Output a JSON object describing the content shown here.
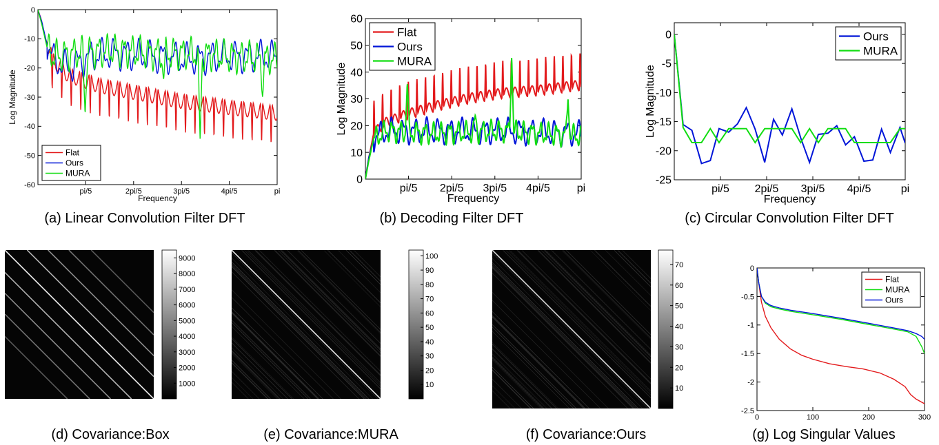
{
  "captions": [
    "(a) Linear Convolution Filter DFT",
    "(b) Decoding Filter DFT",
    "(c) Circular Convolution Filter DFT",
    "(d) Covariance:Box",
    "(e) Covariance:MURA",
    "(f) Covariance:Ours",
    "(g) Log Singular Values"
  ],
  "colors": {
    "Flat": "#e31a1c",
    "Ours": "#0015d8",
    "MURA": "#11dd11"
  },
  "chart_data": [
    {
      "id": "a",
      "type": "line",
      "xlabel": "Frequency",
      "ylabel": "Log Magnitude",
      "xlim": [
        0,
        3.1416
      ],
      "ylim": [
        -60,
        0
      ],
      "xticks": [
        0.6283,
        1.2566,
        1.885,
        2.5133,
        3.1416
      ],
      "xticklabels": [
        "pi/5",
        "2pi/5",
        "3pi/5",
        "4pi/5",
        "pi"
      ],
      "yticks": [
        0,
        -10,
        -20,
        -30,
        -40,
        -50,
        -60
      ],
      "yticklabels": [
        "0",
        "-10",
        "-20",
        "-30",
        "-40",
        "-50",
        "-60"
      ],
      "legend": {
        "position": "bottom-left",
        "entries": [
          "Flat",
          "Ours",
          "MURA"
        ]
      },
      "series": [
        {
          "name": "Flat",
          "base": [
            [
              0,
              0
            ],
            [
              0.04,
              -3
            ],
            [
              0.1,
              -10
            ],
            [
              0.2,
              -17
            ],
            [
              0.4,
              -22
            ],
            [
              0.8,
              -25.5
            ],
            [
              1.3,
              -28
            ],
            [
              1.9,
              -31
            ],
            [
              2.5,
              -33
            ],
            [
              3.1416,
              -35
            ]
          ],
          "period": 0.125,
          "dip": 14,
          "dip_x": [
            0.148,
            0.273,
            0.398,
            0.523,
            0.648,
            0.773,
            0.898,
            1.023,
            1.148,
            1.273,
            1.398,
            1.523,
            1.648,
            1.773,
            1.898,
            2.023,
            2.148,
            2.273,
            2.398,
            2.523,
            2.648,
            2.773,
            2.898,
            3.023
          ]
        },
        {
          "name": "Ours",
          "base": [
            [
              0,
              0
            ],
            [
              0.05,
              -4
            ],
            [
              0.12,
              -12
            ],
            [
              0.2,
              -17
            ],
            [
              0.4,
              -20
            ],
            [
              0.7,
              -16
            ],
            [
              1.0,
              -15
            ],
            [
              1.5,
              -16
            ],
            [
              2.0,
              -17
            ],
            [
              2.5,
              -16
            ],
            [
              3.1416,
              -16
            ]
          ],
          "period": 0.16,
          "amp": 4
        },
        {
          "name": "MURA",
          "base": [
            [
              0,
              0
            ],
            [
              0.05,
              -5
            ],
            [
              0.12,
              -13
            ],
            [
              0.2,
              -16
            ],
            [
              0.5,
              -15
            ],
            [
              1.0,
              -14
            ],
            [
              1.5,
              -15
            ],
            [
              2.0,
              -15
            ],
            [
              2.5,
              -16
            ],
            [
              3.1416,
              -17
            ]
          ],
          "period": 0.11,
          "amp": 4,
          "spikes": [
            [
              0.62,
              -36
            ],
            [
              1.65,
              -24
            ],
            [
              2.13,
              -45
            ],
            [
              2.95,
              -30
            ]
          ]
        }
      ]
    },
    {
      "id": "b",
      "type": "line",
      "xlabel": "Frequency",
      "ylabel": "Log Magnitude",
      "xlim": [
        0,
        3.1416
      ],
      "ylim": [
        0,
        60
      ],
      "xticks": [
        0.6283,
        1.2566,
        1.885,
        2.5133,
        3.1416
      ],
      "xticklabels": [
        "pi/5",
        "2pi/5",
        "3pi/5",
        "4pi/5",
        "pi"
      ],
      "yticks": [
        0,
        10,
        20,
        30,
        40,
        50,
        60
      ],
      "yticklabels": [
        "0",
        "10",
        "20",
        "30",
        "40",
        "50",
        "60"
      ],
      "legend": {
        "position": "top-left",
        "entries": [
          "Flat",
          "Ours",
          "MURA"
        ]
      },
      "series": [
        {
          "name": "Flat",
          "base": [
            [
              0,
              0
            ],
            [
              0.05,
              8
            ],
            [
              0.12,
              17
            ],
            [
              0.3,
              21
            ],
            [
              0.6,
              24
            ],
            [
              1.0,
              27
            ],
            [
              1.5,
              30
            ],
            [
              2.0,
              32
            ],
            [
              2.5,
              33
            ],
            [
              3.1416,
              35
            ]
          ],
          "period": 0.125,
          "peak": 14
        },
        {
          "name": "Ours",
          "base": [
            [
              0,
              0
            ],
            [
              0.05,
              8
            ],
            [
              0.12,
              15
            ],
            [
              0.3,
              18
            ],
            [
              1.0,
              18
            ],
            [
              2.0,
              18
            ],
            [
              3.1416,
              17
            ]
          ],
          "period": 0.17,
          "amp": 3.5
        },
        {
          "name": "MURA",
          "base": [
            [
              0,
              0
            ],
            [
              0.05,
              7
            ],
            [
              0.12,
              15
            ],
            [
              0.3,
              18
            ],
            [
              1.0,
              17
            ],
            [
              2.0,
              18
            ],
            [
              3.1416,
              16
            ]
          ],
          "period": 0.12,
          "amp": 3,
          "spikes": [
            [
              0.61,
              36
            ],
            [
              1.6,
              24
            ],
            [
              2.13,
              46
            ],
            [
              2.95,
              30
            ]
          ]
        }
      ]
    },
    {
      "id": "c",
      "type": "line",
      "xlabel": "Frequency",
      "ylabel": "Log Magnitude",
      "xlim": [
        0,
        3.1416
      ],
      "ylim": [
        -25,
        2
      ],
      "xticks": [
        0.6283,
        1.2566,
        1.885,
        2.5133,
        3.1416
      ],
      "xticklabels": [
        "pi/5",
        "2pi/5",
        "3pi/5",
        "4pi/5",
        "pi"
      ],
      "yticks": [
        0,
        -5,
        -10,
        -15,
        -20,
        -25
      ],
      "yticklabels": [
        "0",
        "-5",
        "-10",
        "-15",
        "-20",
        "-25"
      ],
      "legend": {
        "position": "top-right",
        "entries": [
          "Ours",
          "MURA"
        ]
      },
      "series": [
        {
          "name": "Ours",
          "x": [
            0,
            0.12,
            0.24,
            0.37,
            0.49,
            0.61,
            0.74,
            0.86,
            0.98,
            1.1,
            1.23,
            1.35,
            1.47,
            1.6,
            1.72,
            1.84,
            1.96,
            2.09,
            2.21,
            2.33,
            2.45,
            2.58,
            2.7,
            2.82,
            2.94,
            3.07,
            3.1416
          ],
          "y": [
            0,
            -15.5,
            -16.5,
            -22.2,
            -21.7,
            -16.2,
            -16.8,
            -15.4,
            -12.6,
            -16.3,
            -22,
            -14.6,
            -17.3,
            -12.8,
            -17.8,
            -22,
            -17.2,
            -17,
            -15.7,
            -19,
            -17.6,
            -21.8,
            -21.6,
            -16.3,
            -20.3,
            -16,
            -18.7
          ]
        },
        {
          "name": "MURA",
          "x": [
            0,
            0.12,
            0.24,
            0.37,
            0.49,
            0.61,
            0.74,
            0.86,
            0.98,
            1.1,
            1.23,
            1.35,
            1.47,
            1.6,
            1.72,
            1.84,
            1.96,
            2.09,
            2.21,
            2.33,
            2.45,
            2.58,
            2.7,
            2.82,
            2.94,
            3.07,
            3.1416
          ],
          "y": [
            0,
            -16,
            -18.6,
            -18.6,
            -16.2,
            -18.6,
            -16.2,
            -16.2,
            -16.2,
            -18.6,
            -16.2,
            -16.2,
            -16.2,
            -16.2,
            -18.6,
            -16.2,
            -18.6,
            -16.2,
            -16.2,
            -16.2,
            -18.6,
            -18.6,
            -18.6,
            -18.6,
            -18.6,
            -16.2,
            -16.2
          ]
        }
      ]
    },
    {
      "id": "d",
      "type": "heatmap",
      "colorbar_ticks": [
        1000,
        2000,
        3000,
        4000,
        5000,
        6000,
        7000,
        8000,
        9000
      ],
      "colorbar_ticklabels": [
        "1000",
        "2000",
        "3000",
        "4000",
        "5000",
        "6000",
        "7000",
        "8000",
        "9000"
      ],
      "clim": [
        0,
        9500
      ],
      "diagonal_offsets": [
        -0.58,
        -0.43,
        -0.29,
        -0.15,
        0,
        0.15,
        0.29,
        0.43,
        0.58
      ],
      "diagonal_intensity": [
        0.35,
        0.45,
        0.55,
        0.7,
        0.95,
        0.7,
        0.55,
        0.45,
        0.35
      ]
    },
    {
      "id": "e",
      "type": "heatmap",
      "colorbar_ticks": [
        10,
        20,
        30,
        40,
        50,
        60,
        70,
        80,
        90,
        100
      ],
      "colorbar_ticklabels": [
        "10",
        "20",
        "30",
        "40",
        "50",
        "60",
        "70",
        "80",
        "90",
        "100"
      ],
      "clim": [
        0,
        104
      ],
      "diagonal_offsets": [
        0
      ],
      "diagonal_intensity": [
        0.9
      ]
    },
    {
      "id": "f",
      "type": "heatmap",
      "colorbar_ticks": [
        10,
        20,
        30,
        40,
        50,
        60,
        70
      ],
      "colorbar_ticklabels": [
        "10",
        "20",
        "30",
        "40",
        "50",
        "60",
        "70"
      ],
      "clim": [
        0,
        77
      ],
      "diagonal_offsets": [
        0
      ],
      "diagonal_intensity": [
        0.85
      ]
    },
    {
      "id": "g",
      "type": "line",
      "xlim": [
        0,
        300
      ],
      "ylim": [
        -2.5,
        0
      ],
      "xticks": [
        0,
        100,
        200,
        300
      ],
      "xticklabels": [
        "0",
        "100",
        "200",
        "300"
      ],
      "yticks": [
        0,
        -0.5,
        -1,
        -1.5,
        -2,
        -2.5
      ],
      "yticklabels": [
        "0",
        "-0.5",
        "-1",
        "-1.5",
        "-2",
        "-2.5"
      ],
      "legend": {
        "position": "top-right",
        "entries": [
          "Flat",
          "MURA",
          "Ours"
        ]
      },
      "series": [
        {
          "name": "Flat",
          "x": [
            0,
            3,
            8,
            15,
            25,
            40,
            60,
            80,
            100,
            130,
            160,
            190,
            220,
            245,
            265,
            275,
            285,
            300
          ],
          "y": [
            0,
            -0.25,
            -0.6,
            -0.85,
            -1.05,
            -1.25,
            -1.42,
            -1.53,
            -1.6,
            -1.68,
            -1.73,
            -1.77,
            -1.84,
            -1.95,
            -2.08,
            -2.22,
            -2.3,
            -2.38
          ]
        },
        {
          "name": "MURA",
          "x": [
            0,
            3,
            8,
            15,
            25,
            40,
            60,
            100,
            150,
            200,
            250,
            270,
            285,
            295,
            300
          ],
          "y": [
            0,
            -0.25,
            -0.5,
            -0.62,
            -0.68,
            -0.72,
            -0.76,
            -0.82,
            -0.9,
            -0.99,
            -1.08,
            -1.12,
            -1.2,
            -1.38,
            -1.5
          ]
        },
        {
          "name": "Ours",
          "x": [
            0,
            3,
            8,
            15,
            25,
            40,
            60,
            100,
            150,
            200,
            250,
            270,
            285,
            295,
            300
          ],
          "y": [
            0,
            -0.25,
            -0.5,
            -0.6,
            -0.66,
            -0.7,
            -0.74,
            -0.8,
            -0.88,
            -0.97,
            -1.06,
            -1.1,
            -1.15,
            -1.2,
            -1.25
          ]
        }
      ]
    }
  ]
}
